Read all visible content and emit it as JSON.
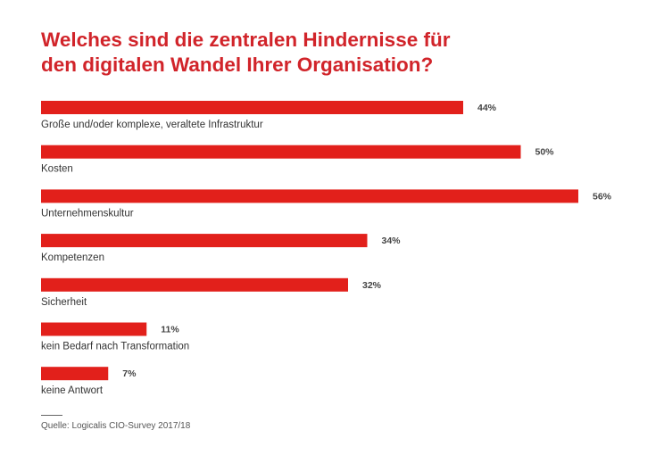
{
  "chart_data": {
    "type": "bar",
    "orientation": "horizontal",
    "title": "Welches sind die zentralen Hindernisse für den digitalen Wandel Ihrer Organisation?",
    "categories": [
      "Große und/oder komplexe, veraltete Infrastruktur",
      "Kosten",
      "Unternehmenskultur",
      "Kompetenzen",
      "Sicherheit",
      "kein Bedarf nach Transformation",
      "keine Antwort"
    ],
    "values": [
      44,
      50,
      56,
      34,
      32,
      11,
      7
    ],
    "value_labels": [
      "44%",
      "50%",
      "56%",
      "34%",
      "32%",
      "11%",
      "7%"
    ],
    "unit": "%",
    "grid": false,
    "bar_color": "#e2201b",
    "title_color": "#d1242a"
  },
  "source": "Quelle: Logicalis CIO-Survey 2017/18"
}
